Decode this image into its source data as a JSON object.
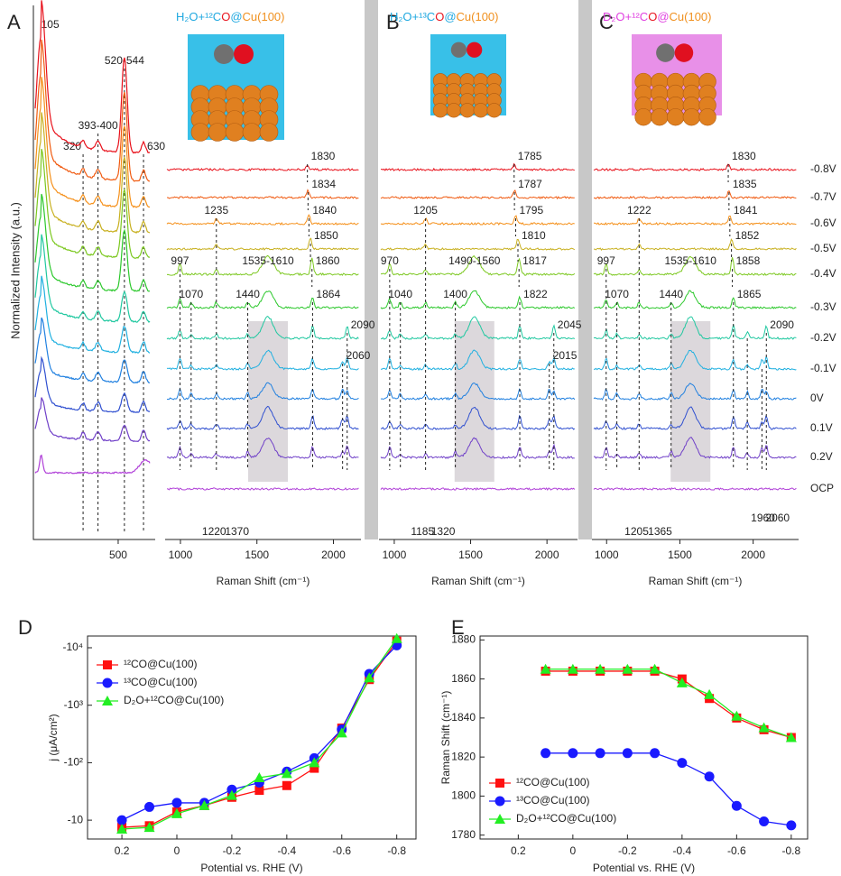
{
  "potentials": [
    {
      "label": "-0.8V",
      "color": "#e8101a"
    },
    {
      "label": "-0.7V",
      "color": "#f05a10"
    },
    {
      "label": "-0.6V",
      "color": "#f5901a"
    },
    {
      "label": "-0.5V",
      "color": "#c8b020"
    },
    {
      "label": "-0.4V",
      "color": "#7cc820"
    },
    {
      "label": "-0.3V",
      "color": "#2cc82c"
    },
    {
      "label": "-0.2V",
      "color": "#20c8a0"
    },
    {
      "label": "-0.1V",
      "color": "#20b0e0"
    },
    {
      "label": "0V",
      "color": "#2080e0"
    },
    {
      "label": "0.1V",
      "color": "#3050d0"
    },
    {
      "label": "0.2V",
      "color": "#7040c8"
    },
    {
      "label": "OCP",
      "color": "#b040d8"
    }
  ],
  "chart_data": [
    {
      "type": "spectra-low",
      "panel": "A",
      "xlim": [
        65,
        690
      ],
      "xticks": [
        500
      ],
      "y_label": "Normalized Intensity (a.u.)",
      "annotations": [
        105,
        320,
        "393-400",
        "520-544",
        630
      ]
    },
    {
      "type": "spectra",
      "image_color": "#38c0e8",
      "title_parts": [
        {
          "text": "H₂O+¹²C",
          "color": "#1fa8e0"
        },
        {
          "text": "O",
          "color": "#e8141e"
        },
        {
          "text": "@",
          "color": "#1fa8e0"
        },
        {
          "text": "Cu(100)",
          "color": "#f0901e"
        }
      ],
      "xlim": [
        900,
        2180
      ],
      "xticks": [
        1000,
        1500,
        2000
      ],
      "x_label": "Raman Shift (cm⁻¹)",
      "annotations": [
        {
          "text": 1830,
          "color": "#222222"
        },
        {
          "text": 1834,
          "color": "#222222"
        },
        {
          "text": 1840,
          "color": "#222222"
        },
        {
          "text": 1850,
          "color": "#222222"
        },
        {
          "text": 1860,
          "color": "#222222"
        },
        {
          "text": 1864,
          "color": "#222222"
        },
        {
          "text": 1235,
          "color": "#1fa8e0"
        },
        {
          "text": 997,
          "color": "#e8141e"
        },
        {
          "text": "1535-1610",
          "color": "#e8141e"
        },
        {
          "text": 1070,
          "color": "#e8141e"
        },
        {
          "text": 1440,
          "color": "#e8141e"
        },
        {
          "text": 2090,
          "color": "#222222"
        },
        {
          "text": 2060,
          "color": "#222222"
        },
        {
          "text": 1220,
          "color": "#2233cc"
        },
        {
          "text": 1370,
          "color": "#2233cc"
        }
      ]
    },
    {
      "type": "spectra",
      "panel": "B",
      "image_color": "#38c0e8",
      "title_parts": [
        {
          "text": "H₂O+¹³C",
          "color": "#1fa8e0"
        },
        {
          "text": "O",
          "color": "#e8141e"
        },
        {
          "text": "@",
          "color": "#1fa8e0"
        },
        {
          "text": "Cu(100)",
          "color": "#f0901e"
        }
      ],
      "xlim": [
        900,
        2200
      ],
      "xticks": [
        1000,
        1500,
        2000
      ],
      "x_label": "Raman Shift (cm⁻¹)",
      "annotations": [
        {
          "text": 1785,
          "color": "#222222"
        },
        {
          "text": 1787,
          "color": "#222222"
        },
        {
          "text": 1795,
          "color": "#222222"
        },
        {
          "text": 1810,
          "color": "#222222"
        },
        {
          "text": 1817,
          "color": "#222222"
        },
        {
          "text": 1822,
          "color": "#222222"
        },
        {
          "text": 1205,
          "color": "#1fa8e0"
        },
        {
          "text": 970,
          "color": "#e8141e"
        },
        {
          "text": "1490-1560",
          "color": "#e8141e"
        },
        {
          "text": 1040,
          "color": "#e8141e"
        },
        {
          "text": 1400,
          "color": "#e8141e"
        },
        {
          "text": 2045,
          "color": "#222222"
        },
        {
          "text": 2015,
          "color": "#222222"
        },
        {
          "text": 1185,
          "color": "#2233cc"
        },
        {
          "text": 1320,
          "color": "#2233cc"
        }
      ]
    },
    {
      "type": "spectra",
      "panel": "C",
      "image_color": "#e890e8",
      "title_parts": [
        {
          "text": "D₂O+¹²C",
          "color": "#e040e0"
        },
        {
          "text": "O",
          "color": "#e8141e"
        },
        {
          "text": "@",
          "color": "#e040e0"
        },
        {
          "text": "Cu(100)",
          "color": "#f0901e"
        }
      ],
      "xlim": [
        900,
        2310
      ],
      "xticks": [
        1000,
        1500,
        2000
      ],
      "x_label": "Raman Shift (cm⁻¹)",
      "annotations": [
        {
          "text": 1830,
          "color": "#222222"
        },
        {
          "text": 1835,
          "color": "#222222"
        },
        {
          "text": 1841,
          "color": "#222222"
        },
        {
          "text": 1852,
          "color": "#222222"
        },
        {
          "text": 1858,
          "color": "#222222"
        },
        {
          "text": 1865,
          "color": "#222222"
        },
        {
          "text": 1222,
          "color": "#1fa8e0"
        },
        {
          "text": 997,
          "color": "#e8141e"
        },
        {
          "text": "1535-1610",
          "color": "#e8141e"
        },
        {
          "text": 1070,
          "color": "#e8141e"
        },
        {
          "text": 1440,
          "color": "#e8141e"
        },
        {
          "text": 2090,
          "color": "#222222"
        },
        {
          "text": 1960,
          "color": "#222222"
        },
        {
          "text": 2060,
          "color": "#222222"
        },
        {
          "text": 1205,
          "color": "#2233cc"
        },
        {
          "text": 1365,
          "color": "#2233cc"
        }
      ]
    },
    {
      "type": "line",
      "panel": "D",
      "y_scale": "log",
      "x_label": "Potential vs. RHE (V)",
      "y_label": "j (μA/cm²)",
      "xlim": [
        0.325,
        -0.87
      ],
      "xticks": [
        0.2,
        0,
        -0.2,
        -0.4,
        -0.6,
        -0.8
      ],
      "ylim": [
        -4.7,
        -16000
      ],
      "yticks": [
        -10,
        {
          "value": -100,
          "label": "-10²"
        },
        {
          "value": -1000,
          "label": "-10³"
        },
        {
          "value": -10000,
          "label": "-10⁴"
        }
      ],
      "legend": "upper left",
      "x": [
        0.2,
        0.1,
        0,
        -0.1,
        -0.2,
        -0.3,
        -0.4,
        -0.5,
        -0.6,
        -0.7,
        -0.8
      ],
      "series": [
        {
          "name": "¹²CO@Cu(100)",
          "color": "#ff1010",
          "marker": "square",
          "values": [
            -7.5,
            -8,
            -14,
            -18,
            -25,
            -33,
            -40,
            -80,
            -400,
            -2800,
            -13000
          ]
        },
        {
          "name": "¹³CO@Cu(100)",
          "color": "#1a1aff",
          "marker": "circle",
          "values": [
            -10,
            -17,
            -20,
            -20,
            -34,
            -45,
            -70,
            -120,
            -380,
            -3500,
            -11000
          ]
        },
        {
          "name": "D₂O+¹²CO@Cu(100)",
          "color": "#22ee22",
          "marker": "triangle",
          "values": [
            -7,
            -7.5,
            -13,
            -18,
            -27,
            -55,
            -65,
            -100,
            -330,
            -3000,
            -14500
          ]
        }
      ]
    },
    {
      "type": "line",
      "panel": "E",
      "x_label": "Potential vs. RHE (V)",
      "y_label": "Raman Shift (cm⁻¹)",
      "xlim": [
        0.34,
        -0.86
      ],
      "xticks": [
        0.2,
        0,
        -0.2,
        -0.4,
        -0.6,
        -0.8
      ],
      "ylim": [
        1778,
        1882
      ],
      "yticks": [
        1780,
        1800,
        1820,
        1840,
        1860,
        1880
      ],
      "legend": "lower left",
      "x": [
        0.1,
        0,
        -0.1,
        -0.2,
        -0.3,
        -0.4,
        -0.5,
        -0.6,
        -0.7,
        -0.8
      ],
      "series": [
        {
          "name": "¹²CO@Cu(100)",
          "color": "#ff1010",
          "marker": "square",
          "values": [
            1864,
            1864,
            1864,
            1864,
            1864,
            1860,
            1850,
            1840,
            1834,
            1830
          ]
        },
        {
          "name": "¹³CO@Cu(100)",
          "color": "#1a1aff",
          "marker": "circle",
          "values": [
            1822,
            1822,
            1822,
            1822,
            1822,
            1817,
            1810,
            1795,
            1787,
            1785
          ]
        },
        {
          "name": "D₂O+¹²CO@Cu(100)",
          "color": "#22ee22",
          "marker": "triangle",
          "values": [
            1865,
            1865,
            1865,
            1865,
            1865,
            1858,
            1852,
            1841,
            1835,
            1830
          ]
        }
      ]
    }
  ]
}
